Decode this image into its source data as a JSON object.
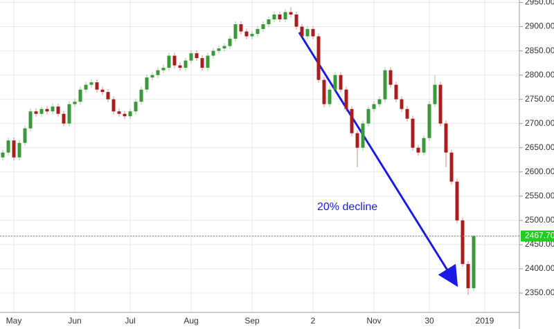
{
  "chart_data": {
    "type": "candlestick",
    "annotation": "20% decline",
    "current_price": {
      "value": 2467.7,
      "label": "2467.70"
    },
    "up_color": "#3a9a3a",
    "down_color": "#a81e1e",
    "price_line_color": "#22cc22",
    "annotation_color": "#1a1ae6",
    "grid": true,
    "ylim": [
      2310,
      2955
    ],
    "yticks": [
      {
        "value": 2350,
        "label": "2350.00"
      },
      {
        "value": 2400,
        "label": "2400.00"
      },
      {
        "value": 2450,
        "label": "2450.00"
      },
      {
        "value": 2500,
        "label": "2500.00"
      },
      {
        "value": 2550,
        "label": "2550.00"
      },
      {
        "value": 2600,
        "label": "2600.00"
      },
      {
        "value": 2650,
        "label": "2650.00"
      },
      {
        "value": 2700,
        "label": "2700.00"
      },
      {
        "value": 2750,
        "label": "2750.00"
      },
      {
        "value": 2800,
        "label": "2800.00"
      },
      {
        "value": 2850,
        "label": "2850.00"
      },
      {
        "value": 2900,
        "label": "2900.00"
      },
      {
        "value": 2950,
        "label": "2950.00"
      }
    ],
    "categories": [
      null,
      null,
      "May",
      null,
      null,
      null,
      null,
      null,
      null,
      null,
      null,
      null,
      null,
      "Jun",
      null,
      null,
      null,
      null,
      null,
      null,
      null,
      null,
      null,
      "Jul",
      null,
      null,
      null,
      null,
      null,
      null,
      null,
      null,
      null,
      null,
      "Aug",
      null,
      null,
      null,
      null,
      null,
      null,
      null,
      null,
      null,
      null,
      "Sep",
      null,
      null,
      null,
      null,
      null,
      null,
      null,
      null,
      null,
      null,
      "2",
      null,
      null,
      null,
      null,
      null,
      null,
      null,
      null,
      null,
      null,
      "Nov",
      null,
      null,
      null,
      null,
      null,
      null,
      null,
      null,
      null,
      "30",
      null,
      null,
      null,
      null,
      null,
      null,
      null,
      null,
      null,
      "2019"
    ],
    "open": [
      2630,
      2640,
      2665,
      2630,
      2660,
      2690,
      2725,
      2720,
      2730,
      2725,
      2735,
      2720,
      2700,
      2740,
      2745,
      2770,
      2780,
      2785,
      2770,
      2765,
      2750,
      2725,
      2720,
      2715,
      2725,
      2745,
      2770,
      2795,
      2800,
      2810,
      2815,
      2840,
      2820,
      2815,
      2830,
      2845,
      2835,
      2815,
      2840,
      2850,
      2855,
      2860,
      2875,
      2905,
      2890,
      2880,
      2885,
      2895,
      2905,
      2915,
      2925,
      2915,
      2930,
      2925,
      2900,
      2880,
      2895,
      2880,
      2790,
      2740,
      2770,
      2800,
      2770,
      2730,
      2680,
      2650,
      2700,
      2730,
      2740,
      2750,
      2810,
      2780,
      2750,
      2730,
      2710,
      2650,
      2640,
      2670,
      2740,
      2780,
      2700,
      2640,
      2580,
      2500,
      2410,
      2360,
      null,
      null
    ],
    "high": [
      2646,
      2671,
      2671,
      2666,
      2696,
      2731,
      2731,
      2736,
      2736,
      2741,
      2741,
      2726,
      2746,
      2751,
      2776,
      2786,
      2791,
      2791,
      2776,
      2771,
      2756,
      2731,
      2726,
      2731,
      2751,
      2776,
      2801,
      2806,
      2816,
      2821,
      2846,
      2846,
      2826,
      2836,
      2851,
      2851,
      2841,
      2846,
      2856,
      2861,
      2866,
      2881,
      2911,
      2911,
      2896,
      2891,
      2901,
      2911,
      2921,
      2931,
      2931,
      2936,
      2940,
      2931,
      2906,
      2901,
      2901,
      2886,
      2796,
      2776,
      2806,
      2806,
      2776,
      2736,
      2686,
      2706,
      2736,
      2746,
      2756,
      2816,
      2816,
      2786,
      2756,
      2736,
      2716,
      2656,
      2676,
      2746,
      2800,
      2786,
      2706,
      2646,
      2586,
      2506,
      2416,
      2470,
      null,
      null
    ],
    "low": [
      2624,
      2634,
      2624,
      2624,
      2654,
      2684,
      2714,
      2714,
      2719,
      2719,
      2714,
      2694,
      2694,
      2734,
      2739,
      2764,
      2774,
      2764,
      2759,
      2744,
      2719,
      2714,
      2709,
      2709,
      2719,
      2739,
      2764,
      2789,
      2794,
      2804,
      2809,
      2814,
      2809,
      2809,
      2824,
      2829,
      2809,
      2809,
      2834,
      2844,
      2849,
      2854,
      2869,
      2884,
      2874,
      2874,
      2879,
      2889,
      2899,
      2909,
      2909,
      2909,
      2919,
      2894,
      2874,
      2874,
      2874,
      2784,
      2734,
      2734,
      2764,
      2764,
      2724,
      2674,
      2610,
      2644,
      2694,
      2724,
      2734,
      2744,
      2774,
      2744,
      2724,
      2704,
      2644,
      2634,
      2634,
      2664,
      2734,
      2694,
      2610,
      2574,
      2494,
      2404,
      2346,
      2354,
      null,
      null
    ],
    "close": [
      2640,
      2665,
      2630,
      2660,
      2690,
      2725,
      2720,
      2730,
      2725,
      2735,
      2720,
      2700,
      2740,
      2745,
      2770,
      2780,
      2785,
      2770,
      2765,
      2750,
      2725,
      2720,
      2715,
      2725,
      2745,
      2770,
      2795,
      2800,
      2810,
      2815,
      2840,
      2820,
      2815,
      2830,
      2845,
      2835,
      2815,
      2840,
      2850,
      2855,
      2860,
      2875,
      2905,
      2890,
      2880,
      2885,
      2895,
      2905,
      2915,
      2925,
      2915,
      2930,
      2925,
      2900,
      2880,
      2895,
      2880,
      2790,
      2740,
      2770,
      2800,
      2770,
      2730,
      2680,
      2650,
      2700,
      2730,
      2740,
      2750,
      2810,
      2780,
      2750,
      2730,
      2710,
      2650,
      2640,
      2670,
      2740,
      2780,
      2700,
      2640,
      2580,
      2500,
      2410,
      2360,
      2467.7,
      null,
      null
    ]
  }
}
